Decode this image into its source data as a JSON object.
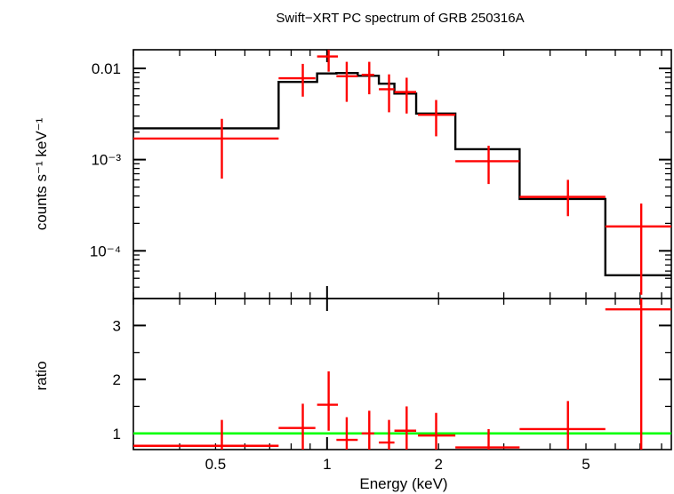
{
  "title": "Swift−XRT PC spectrum of GRB 250316A",
  "colors": {
    "data": "#ff0000",
    "model": "#000000",
    "ratio_line": "#00ff00",
    "axes": "#000000"
  },
  "chart_data": [
    {
      "type": "line",
      "panel": "spectrum",
      "ylabel": "counts s⁻¹ keV⁻¹",
      "xscale": "log",
      "yscale": "log",
      "xlim": [
        0.3,
        8.5
      ],
      "ylim": [
        3e-05,
        0.016
      ],
      "ytick_values": [
        0.01,
        0.001,
        0.0001
      ],
      "ytick_labels": [
        "0.01",
        "10⁻³",
        "10⁻⁴"
      ],
      "series": [
        {
          "kind": "data",
          "points": [
            {
              "x": 0.52,
              "xlo": 0.3,
              "xhi": 0.74,
              "y": 0.0017,
              "ylo": 0.00062,
              "yhi": 0.0028
            },
            {
              "x": 0.86,
              "xlo": 0.74,
              "xhi": 0.93,
              "y": 0.0078,
              "ylo": 0.0049,
              "yhi": 0.0112
            },
            {
              "x": 1.01,
              "xlo": 0.94,
              "xhi": 1.07,
              "y": 0.0135,
              "ylo": 0.0092,
              "yhi": 0.018
            },
            {
              "x": 1.13,
              "xlo": 1.06,
              "xhi": 1.21,
              "y": 0.0082,
              "ylo": 0.0043,
              "yhi": 0.0118
            },
            {
              "x": 1.3,
              "xlo": 1.24,
              "xhi": 1.34,
              "y": 0.0085,
              "ylo": 0.0052,
              "yhi": 0.0118
            },
            {
              "x": 1.47,
              "xlo": 1.38,
              "xhi": 1.52,
              "y": 0.0059,
              "ylo": 0.0033,
              "yhi": 0.0086
            },
            {
              "x": 1.64,
              "xlo": 1.52,
              "xhi": 1.74,
              "y": 0.0055,
              "ylo": 0.0032,
              "yhi": 0.0079
            },
            {
              "x": 1.97,
              "xlo": 1.76,
              "xhi": 2.22,
              "y": 0.0031,
              "ylo": 0.0018,
              "yhi": 0.0045
            },
            {
              "x": 2.73,
              "xlo": 2.22,
              "xhi": 3.31,
              "y": 0.00096,
              "ylo": 0.00054,
              "yhi": 0.00142
            },
            {
              "x": 4.47,
              "xlo": 3.31,
              "xhi": 5.64,
              "y": 0.00039,
              "ylo": 0.00024,
              "yhi": 0.0006
            },
            {
              "x": 7.05,
              "xlo": 5.64,
              "xhi": 8.5,
              "y": 0.000185,
              "ylo": 3.3e-05,
              "yhi": 0.00033
            }
          ]
        },
        {
          "kind": "model",
          "bins": [
            {
              "xlo": 0.3,
              "xhi": 0.74,
              "y": 0.0022
            },
            {
              "xlo": 0.74,
              "xhi": 0.94,
              "y": 0.0071
            },
            {
              "xlo": 0.94,
              "xhi": 1.06,
              "y": 0.0088
            },
            {
              "xlo": 1.06,
              "xhi": 1.21,
              "y": 0.0089
            },
            {
              "xlo": 1.21,
              "xhi": 1.38,
              "y": 0.0083
            },
            {
              "xlo": 1.38,
              "xhi": 1.52,
              "y": 0.0068
            },
            {
              "xlo": 1.52,
              "xhi": 1.74,
              "y": 0.0053
            },
            {
              "xlo": 1.74,
              "xhi": 2.22,
              "y": 0.0032
            },
            {
              "xlo": 2.22,
              "xhi": 3.31,
              "y": 0.0013
            },
            {
              "xlo": 3.31,
              "xhi": 5.64,
              "y": 0.00037
            },
            {
              "xlo": 5.64,
              "xhi": 8.5,
              "y": 5.4e-05
            }
          ]
        }
      ]
    },
    {
      "type": "line",
      "panel": "ratio",
      "ylabel": "ratio",
      "xlabel": "Energy (keV)",
      "xscale": "log",
      "yscale": "linear",
      "xlim": [
        0.3,
        8.5
      ],
      "ylim": [
        0.7,
        3.5
      ],
      "ytick_values": [
        1,
        2,
        3
      ],
      "ytick_labels": [
        "1",
        "2",
        "3"
      ],
      "xtick_values": [
        0.5,
        1,
        2,
        5
      ],
      "xtick_labels": [
        "0.5",
        "1",
        "2",
        "5"
      ],
      "reference_line": 1,
      "series": [
        {
          "kind": "data",
          "points": [
            {
              "x": 0.52,
              "xlo": 0.3,
              "xhi": 0.74,
              "y": 0.77,
              "ylo": 0.28,
              "yhi": 1.25
            },
            {
              "x": 0.86,
              "xlo": 0.74,
              "xhi": 0.93,
              "y": 1.1,
              "ylo": 0.68,
              "yhi": 1.55
            },
            {
              "x": 1.01,
              "xlo": 0.94,
              "xhi": 1.07,
              "y": 1.53,
              "ylo": 1.05,
              "yhi": 2.15
            },
            {
              "x": 1.13,
              "xlo": 1.06,
              "xhi": 1.21,
              "y": 0.88,
              "ylo": 0.45,
              "yhi": 1.3
            },
            {
              "x": 1.3,
              "xlo": 1.24,
              "xhi": 1.34,
              "y": 1.0,
              "ylo": 0.6,
              "yhi": 1.42
            },
            {
              "x": 1.47,
              "xlo": 1.38,
              "xhi": 1.52,
              "y": 0.83,
              "ylo": 0.45,
              "yhi": 1.25
            },
            {
              "x": 1.64,
              "xlo": 1.52,
              "xhi": 1.74,
              "y": 1.05,
              "ylo": 0.62,
              "yhi": 1.5
            },
            {
              "x": 1.97,
              "xlo": 1.76,
              "xhi": 2.22,
              "y": 0.96,
              "ylo": 0.55,
              "yhi": 1.38
            },
            {
              "x": 2.73,
              "xlo": 2.22,
              "xhi": 3.31,
              "y": 0.74,
              "ylo": 0.42,
              "yhi": 1.08
            },
            {
              "x": 4.47,
              "xlo": 3.31,
              "xhi": 5.64,
              "y": 1.08,
              "ylo": 0.65,
              "yhi": 1.6
            },
            {
              "x": 7.05,
              "xlo": 5.64,
              "xhi": 8.5,
              "y": 3.3,
              "ylo": 0.6,
              "yhi": 5.5
            }
          ]
        }
      ]
    }
  ]
}
